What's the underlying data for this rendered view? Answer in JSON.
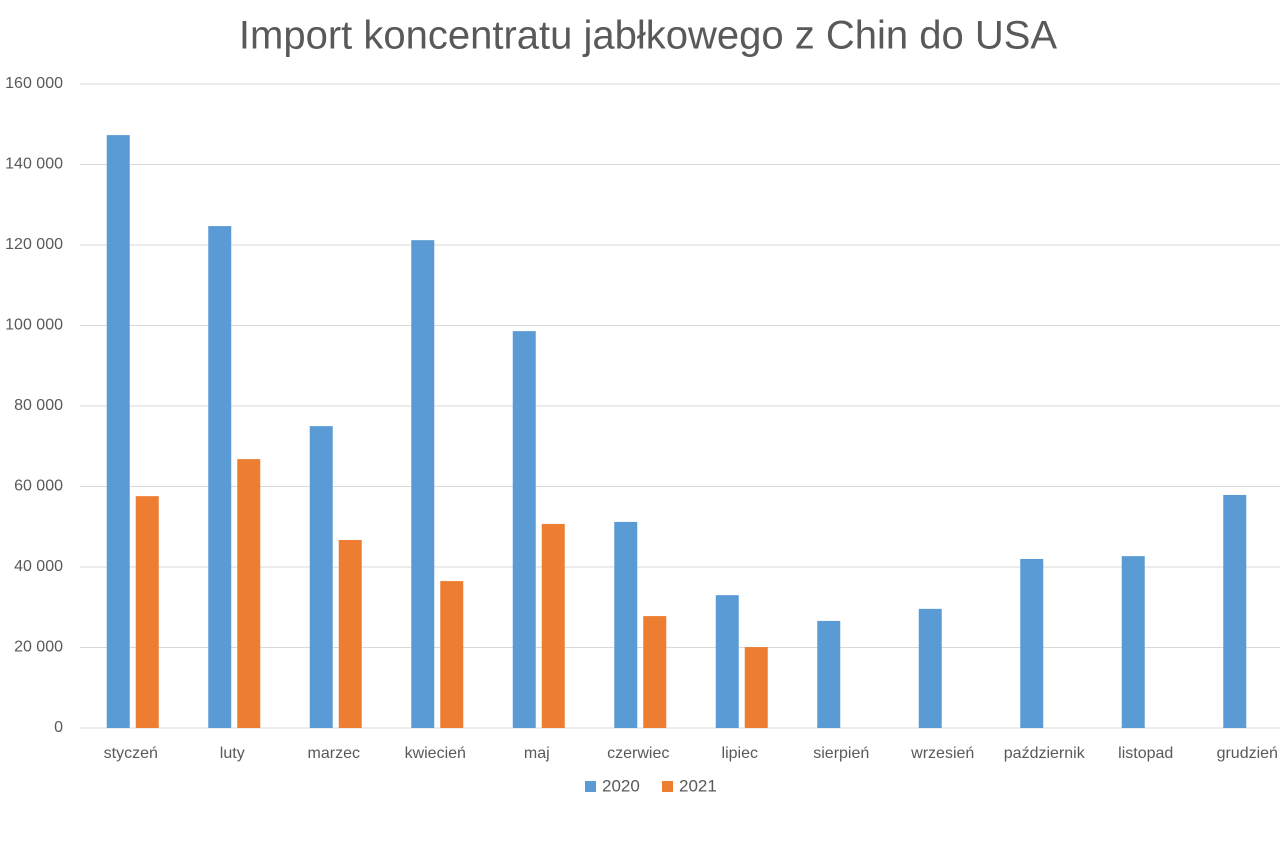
{
  "chart_data": {
    "type": "bar",
    "title": "Import koncentratu jabłkowego z Chin do USA",
    "categories": [
      "styczeń",
      "luty",
      "marzec",
      "kwiecień",
      "maj",
      "czerwiec",
      "lipiec",
      "sierpień",
      "wrzesień",
      "październik",
      "listopad",
      "grudzień"
    ],
    "series": [
      {
        "name": "2020",
        "color": "#5b9bd5",
        "values": [
          147300,
          124700,
          75000,
          121200,
          98600,
          51200,
          33000,
          26600,
          29600,
          42000,
          42700,
          57900
        ]
      },
      {
        "name": "2021",
        "color": "#ed7d31",
        "values": [
          57600,
          66800,
          46700,
          36500,
          50700,
          27800,
          20100,
          null,
          null,
          null,
          null,
          null
        ]
      }
    ],
    "ylim": [
      0,
      160000
    ],
    "yticks": [
      0,
      {
        "value": 20000,
        "label": "20 000"
      },
      {
        "value": 40000,
        "label": "40 000"
      },
      {
        "value": 60000,
        "label": "60 000"
      },
      {
        "value": 80000,
        "label": "80 000"
      },
      {
        "value": 100000,
        "label": "100 000"
      },
      {
        "value": 120000,
        "label": "120 000"
      },
      {
        "value": 140000,
        "label": "140 000"
      },
      {
        "value": 160000,
        "label": "160 000"
      }
    ],
    "grid": true,
    "legend": "bottom"
  }
}
